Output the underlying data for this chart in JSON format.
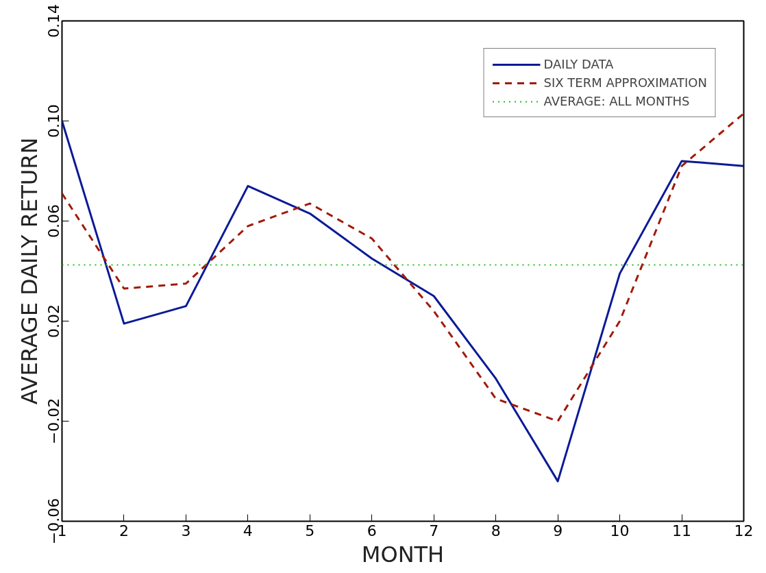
{
  "chart_data": {
    "type": "line",
    "xlabel": "MONTH",
    "ylabel": "AVERAGE DAILY RETURN",
    "x": [
      1,
      2,
      3,
      4,
      5,
      6,
      7,
      8,
      9,
      10,
      11,
      12
    ],
    "xlim": [
      1,
      12
    ],
    "xticks": [
      1,
      2,
      3,
      4,
      5,
      6,
      7,
      8,
      9,
      10,
      11,
      12
    ],
    "ylim": [
      -0.06,
      0.14
    ],
    "yticks": [
      -0.06,
      -0.02,
      0.02,
      0.06,
      {
        "value": 0.1,
        "label": "0.10"
      },
      0.14
    ],
    "grid": false,
    "legend": "top right",
    "marker": "none",
    "series": [
      {
        "name": "DAILY DATA",
        "color": "#0a1a96",
        "line_style": "solid",
        "values": [
          0.1,
          0.019,
          0.026,
          0.074,
          0.063,
          0.045,
          0.03,
          -0.003,
          -0.044,
          0.039,
          0.084,
          0.082
        ]
      },
      {
        "name": "SIX TERM APPROXIMATION",
        "color": "#a01a0a",
        "line_style": "dashed",
        "values": [
          0.071,
          0.033,
          0.035,
          0.058,
          0.067,
          0.053,
          0.024,
          -0.011,
          -0.02,
          0.02,
          0.082,
          0.103
        ]
      },
      {
        "name": "AVERAGE: ALL MONTHS",
        "color": "#22bb22",
        "line_style": "dotted",
        "x": [
          1,
          12
        ],
        "values": [
          0.0425,
          0.0425
        ]
      }
    ]
  }
}
